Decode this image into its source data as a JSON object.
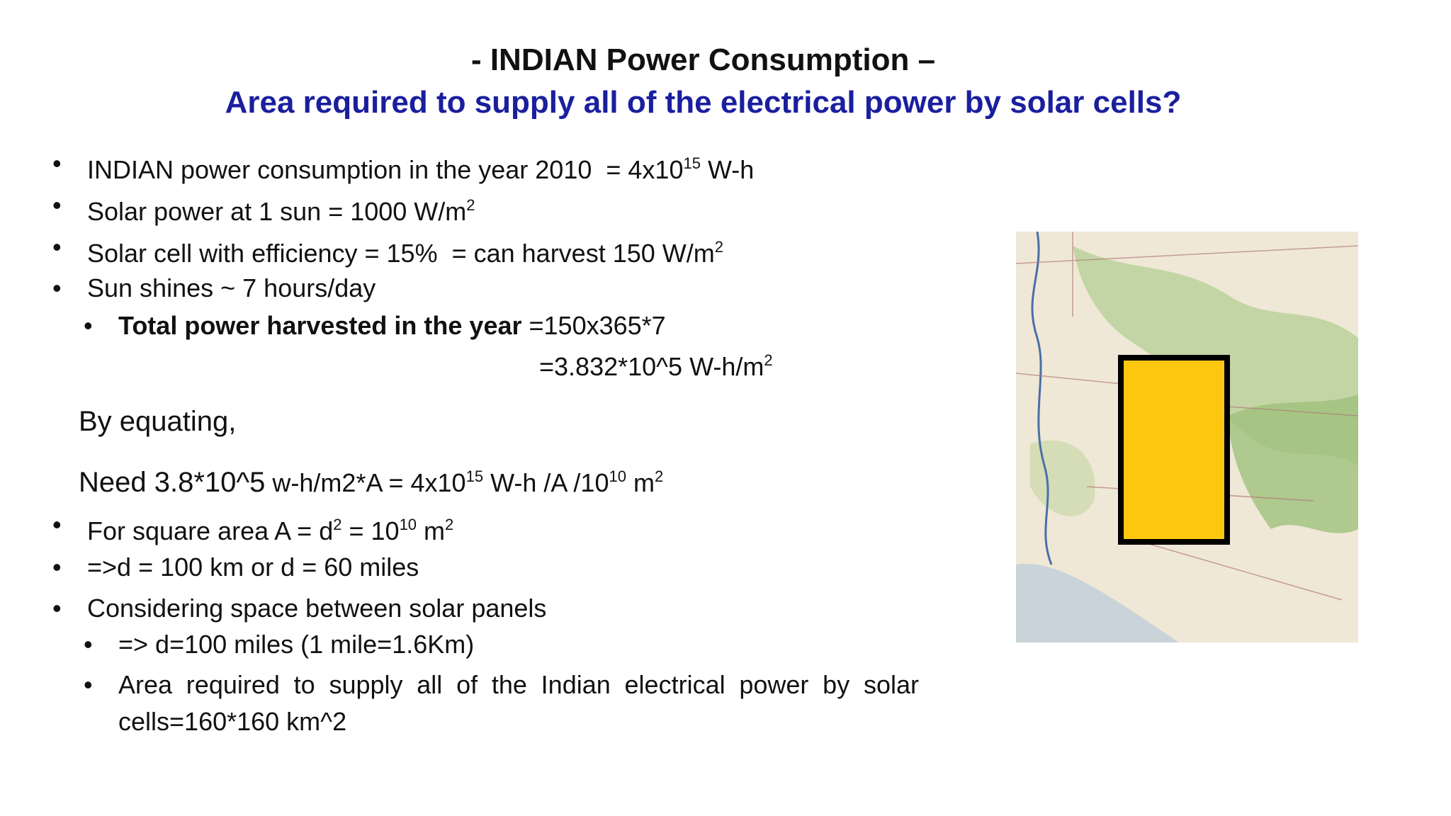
{
  "header": {
    "title": "- INDIAN Power Consumption –",
    "subtitle": "Area required to supply all of the electrical power by solar cells?"
  },
  "body": {
    "lines": [
      [
        "INDIAN power consumption in the year 2010  = 4x10",
        "15",
        " W-h"
      ],
      [
        "Solar power at 1 sun = 1000 W/m",
        "2"
      ],
      [
        "Solar cell with efficiency = 15%  = can harvest 150 W/m",
        "2"
      ],
      [
        "Sun shines ~ 7 hours/day"
      ],
      [
        "Total power harvested in the year",
        " =150x365*7"
      ],
      [
        "=3.832*10^5 W-h/m",
        "2"
      ],
      [
        "By equating,"
      ],
      [
        "Need 3.8*10^5",
        " w-h/m2*A = 4x10",
        "15",
        " W-h /A /10",
        "10",
        " m",
        "2"
      ],
      [
        "For square area A = d",
        "2",
        " = 10",
        "10",
        " m",
        "2"
      ],
      [
        "=>d = 100 km or d = 60 miles"
      ],
      [
        "Considering space between solar panels"
      ],
      [
        "=> d=100 miles (1 mile=1.6Km)"
      ],
      [
        "Area required to supply all of the Indian electrical power by solar cells=160*160 km^2"
      ]
    ]
  }
}
